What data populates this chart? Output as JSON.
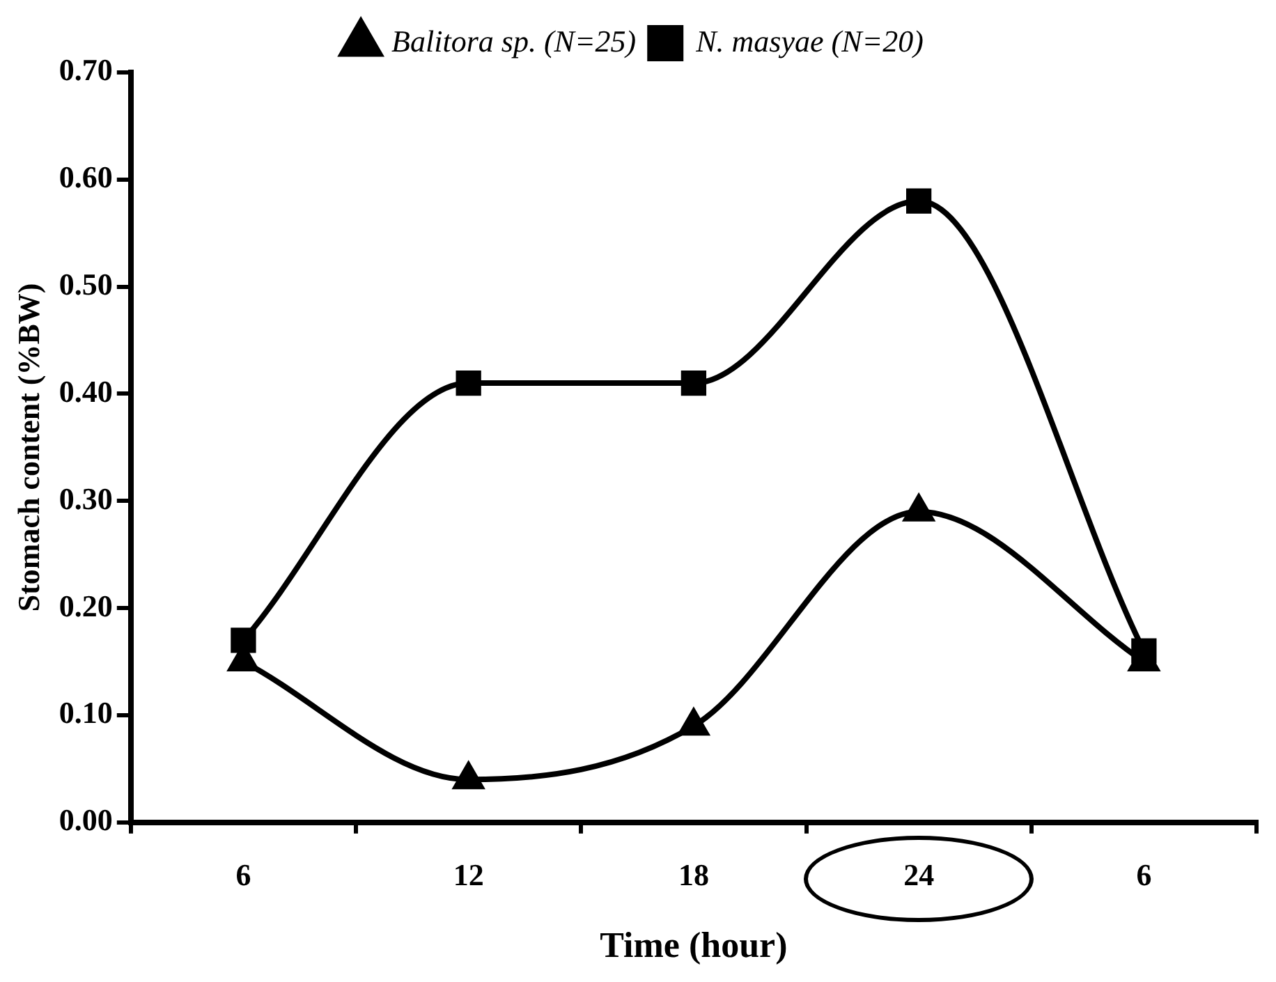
{
  "chart_data": {
    "type": "line",
    "xlabel": "Time (hour)",
    "ylabel": "Stomach content (%BW)",
    "categories": [
      "6",
      "12",
      "18",
      "24",
      "6"
    ],
    "series": [
      {
        "name": "Balitora sp. (N=25)",
        "color": "#000000",
        "marker": "triangle",
        "values": [
          0.15,
          0.04,
          0.09,
          0.29,
          0.15
        ]
      },
      {
        "name": "N. masyae (N=20)",
        "color": "#000000",
        "marker": "square",
        "values": [
          0.17,
          0.41,
          0.41,
          0.58,
          0.16
        ]
      }
    ],
    "ylim": [
      0,
      0.7
    ],
    "yticks": [
      {
        "value": 0,
        "label": "0.00"
      },
      {
        "value": 0.1,
        "label": "0.10"
      },
      {
        "value": 0.2,
        "label": "0.20"
      },
      {
        "value": 0.3,
        "label": "0.30"
      },
      {
        "value": 0.4,
        "label": "0.40"
      },
      {
        "value": 0.5,
        "label": "0.50"
      },
      {
        "value": 0.6,
        "label": "0.60"
      },
      {
        "value": 0.7,
        "label": "0.70"
      }
    ],
    "grid": false,
    "legend": "top",
    "line_style": "solid"
  }
}
